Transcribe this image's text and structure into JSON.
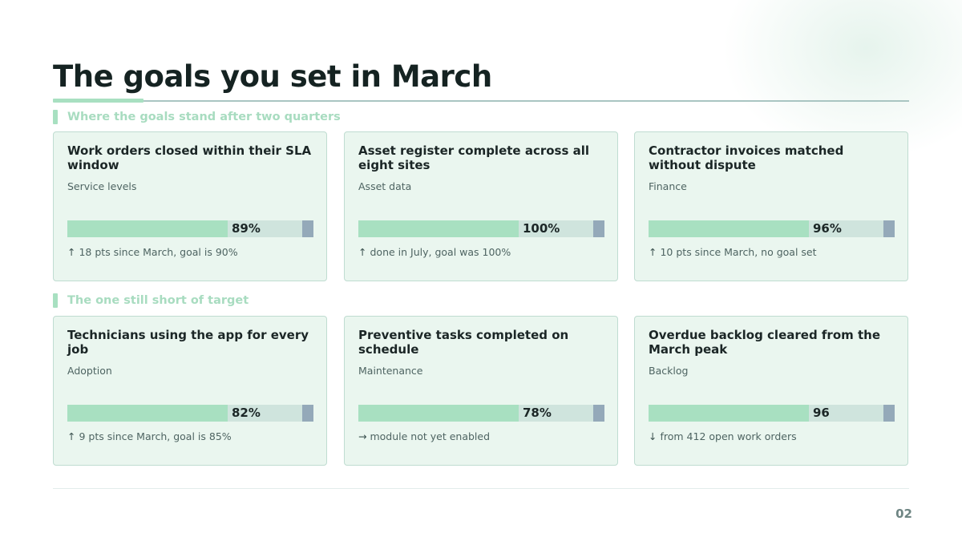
{
  "slide": {
    "title": "The goals you set in March",
    "page_number": "02"
  },
  "sections": [
    {
      "label": "Where the goals stand after two quarters",
      "cards": [
        {
          "title": "Work orders closed within their SLA window",
          "category": "Service levels",
          "value": "89%",
          "arrow": "↑",
          "arrow_icon": "arrow-up-icon",
          "note": "18 pts since March, goal is 90%"
        },
        {
          "title": "Asset register complete across all eight sites",
          "category": "Asset data",
          "value": "100%",
          "arrow": "↑",
          "arrow_icon": "arrow-up-icon",
          "note": "done in July, goal was 100%"
        },
        {
          "title": "Contractor invoices matched without dispute",
          "category": "Finance",
          "value": "96%",
          "arrow": "↑",
          "arrow_icon": "arrow-up-icon",
          "note": "10 pts since March, no goal set"
        }
      ]
    },
    {
      "label": "The one still short of target",
      "cards": [
        {
          "title": "Technicians using the app for every job",
          "category": "Adoption",
          "value": "82%",
          "arrow": "↑",
          "arrow_icon": "arrow-up-icon",
          "note": "9 pts since March, goal is 85%"
        },
        {
          "title": "Preventive tasks completed on schedule",
          "category": "Maintenance",
          "value": "78%",
          "arrow": "→",
          "arrow_icon": "arrow-right-icon",
          "note": "module not yet enabled"
        },
        {
          "title": "Overdue backlog cleared from the March peak",
          "category": "Backlog",
          "value": "96",
          "arrow": "↓",
          "arrow_icon": "arrow-down-icon",
          "note": "from 412 open work orders"
        }
      ]
    }
  ],
  "colors": {
    "accent": "#a8e0c1",
    "bar_track": "#cfe4dd",
    "target_marker": "#94a9b9",
    "card_background": "#eaf6ef"
  }
}
